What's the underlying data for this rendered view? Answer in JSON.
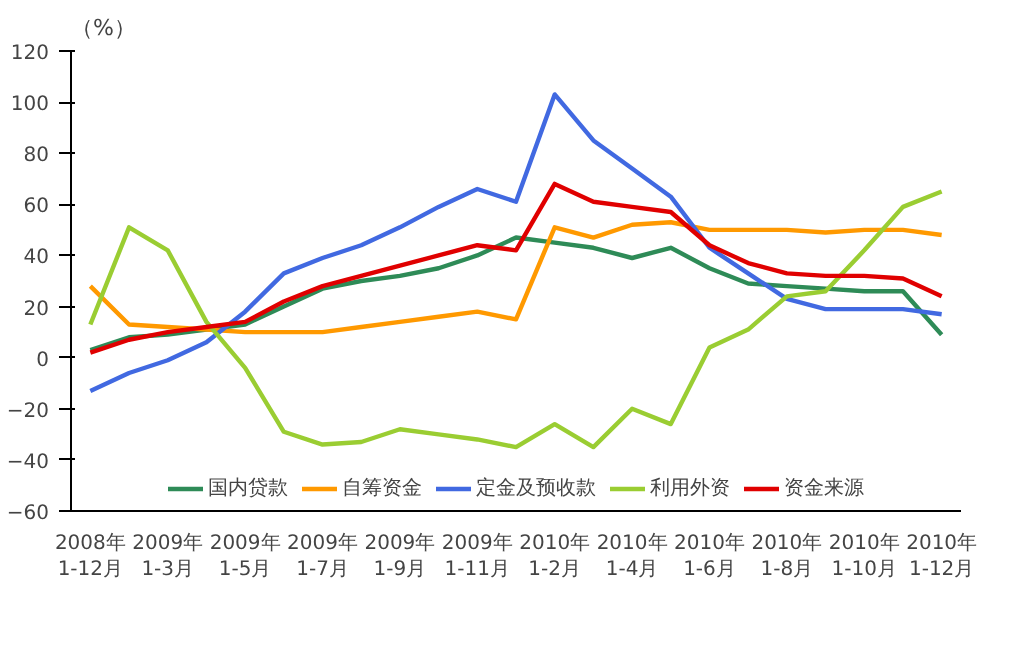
{
  "chart_data": {
    "type": "line",
    "ylabel": "（%）",
    "categories": [
      "2008年\n1-12月",
      null,
      "2009年\n1-3月",
      null,
      "2009年\n1-5月",
      null,
      "2009年\n1-7月",
      null,
      "2009年\n1-9月",
      null,
      "2009年\n1-11月",
      null,
      "2010年\n1-2月",
      null,
      "2010年\n1-4月",
      null,
      "2010年\n1-6月",
      null,
      "2010年\n1-8月",
      null,
      "2010年\n1-10月",
      null,
      "2010年\n1-12月"
    ],
    "series": [
      {
        "name": "国内贷款",
        "color": "#2e8b57",
        "values": [
          3,
          8,
          9,
          11,
          13,
          20,
          27,
          30,
          32,
          35,
          40,
          47,
          45,
          43,
          39,
          43,
          35,
          29,
          28,
          27,
          26,
          26,
          9
        ]
      },
      {
        "name": "自筹资金",
        "color": "#ff9900",
        "values": [
          28,
          13,
          12,
          11,
          10,
          10,
          10,
          12,
          14,
          16,
          18,
          15,
          51,
          47,
          52,
          53,
          50,
          50,
          50,
          49,
          50,
          50,
          48
        ]
      },
      {
        "name": "定金及预收款",
        "color": "#4169e1",
        "values": [
          -13,
          -6,
          -1,
          6,
          18,
          33,
          39,
          44,
          51,
          59,
          66,
          61,
          103,
          85,
          74,
          63,
          43,
          33,
          23,
          19,
          19,
          19,
          17
        ]
      },
      {
        "name": "利用外资",
        "color": "#9acd32",
        "values": [
          13,
          51,
          42,
          14,
          -4,
          -29,
          -34,
          -33,
          -28,
          -30,
          -32,
          -35,
          -26,
          -35,
          -20,
          -26,
          4,
          11,
          24,
          26,
          42,
          59,
          65
        ]
      },
      {
        "name": "资金来源",
        "color": "#e00000",
        "values": [
          2,
          7,
          10,
          12,
          14,
          22,
          28,
          32,
          36,
          40,
          44,
          42,
          68,
          61,
          59,
          57,
          44,
          37,
          33,
          32,
          32,
          31,
          24
        ]
      }
    ],
    "ylim": [
      -60,
      120
    ],
    "yticks": [
      -60,
      -40,
      -20,
      0,
      20,
      40,
      60,
      80,
      100,
      120
    ],
    "grid": false,
    "legend": "bottom",
    "marker": "none",
    "line_style": "solid"
  }
}
